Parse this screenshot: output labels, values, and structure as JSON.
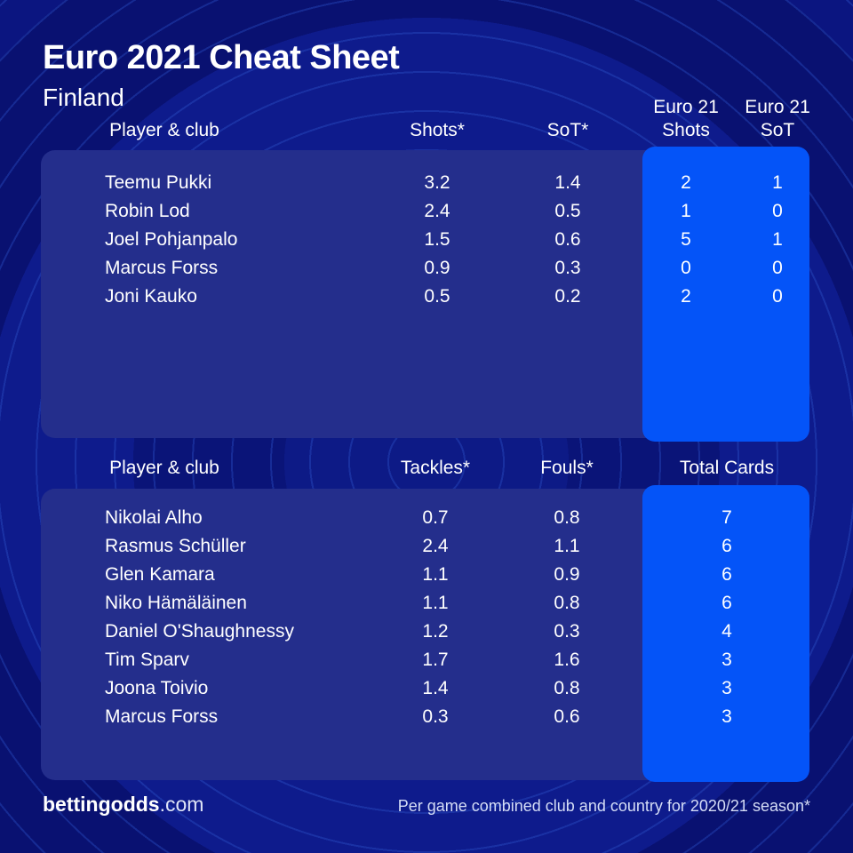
{
  "title": "Euro 2021 Cheat Sheet",
  "subtitle": "Finland",
  "header_display": {
    "euro_shots_lines": [
      "Euro 21",
      "Shots"
    ],
    "euro_sot_lines": [
      "Euro 21",
      "SoT"
    ]
  },
  "chart_data": [
    {
      "type": "table",
      "columns": [
        "Player & club",
        "Shots*",
        "SoT*",
        "Euro 21 Shots",
        "Euro 21 SoT"
      ],
      "rows": [
        [
          "Teemu Pukki",
          3.2,
          1.4,
          2,
          1
        ],
        [
          "Robin Lod",
          2.4,
          0.5,
          1,
          0
        ],
        [
          "Joel Pohjanpalo",
          1.5,
          0.6,
          5,
          1
        ],
        [
          "Marcus Forss",
          0.9,
          0.3,
          0,
          0
        ],
        [
          "Joni Kauko",
          0.5,
          0.2,
          2,
          0
        ]
      ],
      "layout_hint": "last two columns highlighted on bright blue panel"
    },
    {
      "type": "table",
      "columns": [
        "Player & club",
        "Tackles*",
        "Fouls*",
        "Total Cards"
      ],
      "rows": [
        [
          "Nikolai Alho",
          0.7,
          0.8,
          7
        ],
        [
          "Rasmus Schüller",
          2.4,
          1.1,
          6
        ],
        [
          "Glen Kamara",
          1.1,
          0.9,
          6
        ],
        [
          "Niko Hämäläinen",
          1.1,
          0.8,
          6
        ],
        [
          "Daniel O'Shaughnessy",
          1.2,
          0.3,
          4
        ],
        [
          "Tim Sparv",
          1.7,
          1.6,
          3
        ],
        [
          "Joona Toivio",
          1.4,
          0.8,
          3
        ],
        [
          "Marcus Forss",
          0.3,
          0.6,
          3
        ]
      ],
      "layout_hint": "last column highlighted on bright blue panel"
    }
  ],
  "footer": {
    "brand": "bettingodds",
    "brand_suffix": ".com",
    "note": "Per game combined club and country for 2020/21 season*"
  },
  "colors": {
    "background": "#0A1173",
    "panel": "#242E8C",
    "highlight": "#0454F8",
    "ring_line": "#2F5AD2",
    "text": "#FFFFFF"
  }
}
